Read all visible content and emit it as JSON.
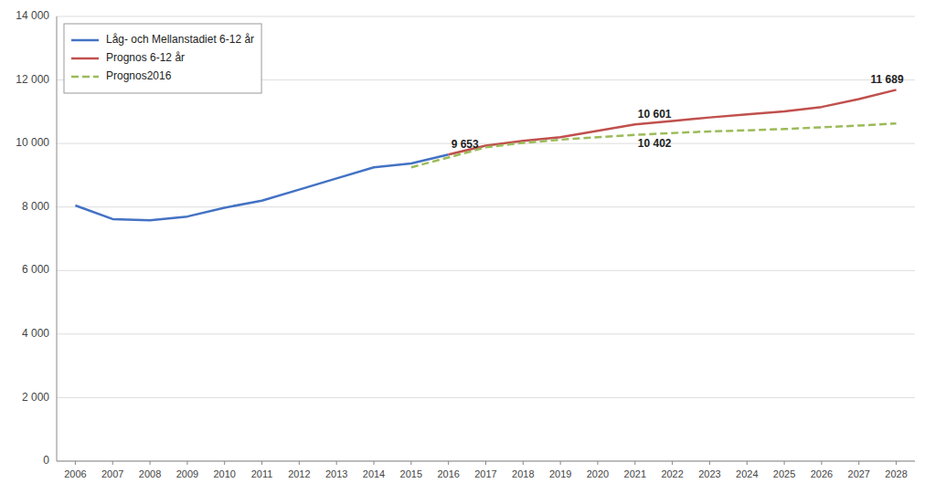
{
  "chart_data": {
    "type": "line",
    "x": [
      2006,
      2007,
      2008,
      2009,
      2010,
      2011,
      2012,
      2013,
      2014,
      2015,
      2016,
      2017,
      2018,
      2019,
      2020,
      2021,
      2022,
      2023,
      2024,
      2025,
      2026,
      2027,
      2028
    ],
    "series": [
      {
        "name": "Låg- och Mellanstadiet 6-12 år",
        "color": "#4472C4",
        "line_style": "solid",
        "values": [
          8050,
          7620,
          7580,
          7700,
          7980,
          8200,
          8550,
          8900,
          9250,
          9370,
          9653,
          null,
          null,
          null,
          null,
          null,
          null,
          null,
          null,
          null,
          null,
          null,
          null
        ]
      },
      {
        "name": "Prognos 6-12 år",
        "color": "#C0504D",
        "line_style": "solid",
        "values": [
          null,
          null,
          null,
          null,
          null,
          null,
          null,
          null,
          null,
          null,
          9653,
          9930,
          10080,
          10200,
          10402,
          10601,
          10710,
          10820,
          10920,
          11010,
          11150,
          11400,
          11689
        ]
      },
      {
        "name": "Prognos2016",
        "color": "#9BBB59",
        "line_style": "dashed",
        "values": [
          null,
          null,
          null,
          null,
          null,
          null,
          null,
          null,
          null,
          9250,
          9560,
          9880,
          10020,
          10120,
          10200,
          10270,
          10330,
          10380,
          10415,
          10455,
          10510,
          10565,
          10630
        ]
      }
    ],
    "annotations": [
      {
        "text": "9 653",
        "x": 2016,
        "y": 9653
      },
      {
        "text": "10 601",
        "x": 2021,
        "y": 10601
      },
      {
        "text": "10 402",
        "x": 2021,
        "y": 10402
      },
      {
        "text": "11 689",
        "x": 2028,
        "y": 11689
      }
    ],
    "xlim": [
      2005.5,
      2028.5
    ],
    "xticks": [
      2006,
      2007,
      2008,
      2009,
      2010,
      2011,
      2012,
      2013,
      2014,
      2015,
      2016,
      2017,
      2018,
      2019,
      2020,
      2021,
      2022,
      2023,
      2024,
      2025,
      2026,
      2027,
      2028
    ],
    "ylim": [
      0,
      14000
    ],
    "yticks": [
      0,
      {
        "value": 2000,
        "label": "2 000"
      },
      {
        "value": 4000,
        "label": "4 000"
      },
      {
        "value": 6000,
        "label": "6 000"
      },
      {
        "value": 8000,
        "label": "8 000"
      },
      {
        "value": 10000,
        "label": "10 000"
      },
      {
        "value": 12000,
        "label": "12 000"
      },
      {
        "value": 14000,
        "label": "14 000"
      }
    ],
    "grid": true,
    "legend": "upper left"
  }
}
